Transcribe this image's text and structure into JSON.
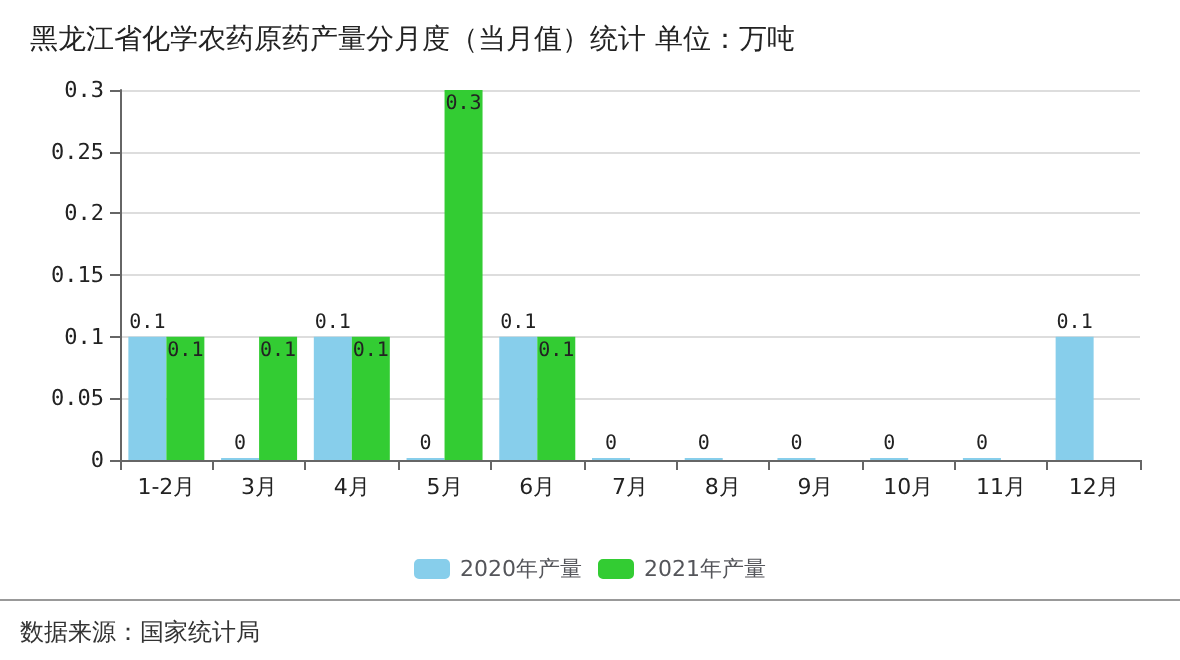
{
  "chart_data": {
    "type": "bar",
    "title": "黑龙江省化学农药原药产量分月度（当月值）统计 单位：万吨",
    "categories": [
      "1-2月",
      "3月",
      "4月",
      "5月",
      "6月",
      "7月",
      "8月",
      "9月",
      "10月",
      "11月",
      "12月"
    ],
    "series": [
      {
        "name": "2020年产量",
        "color": "#87ceeb",
        "values": [
          0.1,
          0,
          0.1,
          0,
          0.1,
          0,
          0,
          0,
          0,
          0,
          0.1
        ]
      },
      {
        "name": "2021年产量",
        "color": "#33cc33",
        "values": [
          0.1,
          0.1,
          0.1,
          0.3,
          0.1,
          null,
          null,
          null,
          null,
          null,
          null
        ]
      }
    ],
    "ylim": [
      0,
      0.3
    ],
    "yticks": [
      0,
      0.05,
      0.1,
      0.15,
      0.2,
      0.25,
      0.3
    ],
    "grid": "y",
    "legend": "bottom",
    "data_labels": true,
    "annotations": [
      "数据来源：国家统计局"
    ]
  }
}
